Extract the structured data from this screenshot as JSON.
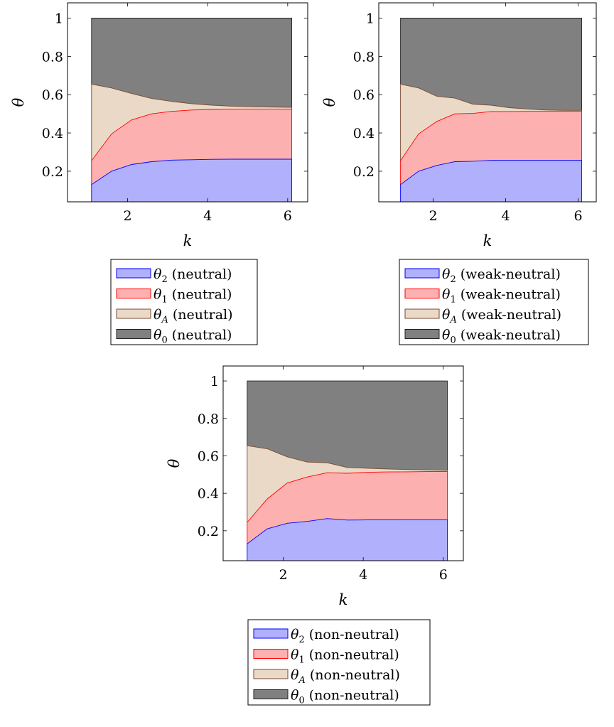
{
  "chart_data": [
    {
      "type": "area",
      "stacked": true,
      "variant": "neutral",
      "xlabel": "k",
      "ylabel": "θ",
      "xlim": [
        0.5,
        6.5
      ],
      "ylim": [
        0.04,
        1.08
      ],
      "xticks": [
        2,
        4,
        6
      ],
      "yticks": [
        0.2,
        0.4,
        0.6,
        0.8,
        1
      ],
      "x": [
        1.1,
        1.6,
        2.1,
        2.6,
        3.1,
        3.6,
        4.1,
        4.6,
        5.1,
        5.6,
        6.1
      ],
      "series": [
        {
          "key": "theta2",
          "name": "θ2 (neutral)",
          "sym": "θ",
          "sub": "2",
          "suffix": " (neutral)",
          "fill": "#b0b0fd",
          "stroke": "#0000ff",
          "values": [
            0.13,
            0.2,
            0.235,
            0.25,
            0.258,
            0.26,
            0.262,
            0.263,
            0.263,
            0.263,
            0.263
          ]
        },
        {
          "key": "theta1",
          "name": "θ1 (neutral)",
          "sym": "θ",
          "sub": "1",
          "suffix": " (neutral)",
          "fill": "#fdb0b0",
          "stroke": "#ff0000",
          "values": [
            0.255,
            0.395,
            0.468,
            0.5,
            0.513,
            0.52,
            0.523,
            0.524,
            0.525,
            0.525,
            0.525
          ]
        },
        {
          "key": "thetaA",
          "name": "θA (neutral)",
          "sym": "θ",
          "sub": "A",
          "suffix": " (neutral)",
          "fill": "#ead9c6",
          "stroke": "#7a4a33",
          "values": [
            0.655,
            0.635,
            0.606,
            0.58,
            0.565,
            0.553,
            0.545,
            0.54,
            0.537,
            0.535,
            0.534
          ]
        },
        {
          "key": "theta0",
          "name": "θ0 (neutral)",
          "sym": "θ",
          "sub": "0",
          "suffix": " (neutral)",
          "fill": "#808080",
          "stroke": "#222222",
          "values": [
            1,
            1,
            1,
            1,
            1,
            1,
            1,
            1,
            1,
            1,
            1
          ]
        }
      ]
    },
    {
      "type": "area",
      "stacked": true,
      "variant": "weak-neutral",
      "xlabel": "k",
      "ylabel": "θ",
      "xlim": [
        0.5,
        6.5
      ],
      "ylim": [
        0.04,
        1.08
      ],
      "xticks": [
        2,
        4,
        6
      ],
      "yticks": [
        0.2,
        0.4,
        0.6,
        0.8,
        1
      ],
      "x": [
        1.1,
        1.6,
        2.1,
        2.6,
        3.1,
        3.6,
        4.1,
        4.6,
        5.1,
        5.6,
        6.1
      ],
      "series": [
        {
          "key": "theta2",
          "name": "θ2 (weak-neutral)",
          "sym": "θ",
          "sub": "2",
          "suffix": " (weak-neutral)",
          "fill": "#b0b0fd",
          "stroke": "#0000ff",
          "values": [
            0.13,
            0.2,
            0.23,
            0.25,
            0.252,
            0.257,
            0.257,
            0.257,
            0.257,
            0.257,
            0.257
          ]
        },
        {
          "key": "theta1",
          "name": "θ1 (weak-neutral)",
          "sym": "θ",
          "sub": "1",
          "suffix": " (weak-neutral)",
          "fill": "#fdb0b0",
          "stroke": "#ff0000",
          "values": [
            0.255,
            0.395,
            0.46,
            0.5,
            0.502,
            0.512,
            0.512,
            0.513,
            0.513,
            0.513,
            0.513
          ]
        },
        {
          "key": "thetaA",
          "name": "θA (weak-neutral)",
          "sym": "θ",
          "sub": "A",
          "suffix": " (weak-neutral)",
          "fill": "#ead9c6",
          "stroke": "#7a4a33",
          "values": [
            0.655,
            0.635,
            0.592,
            0.582,
            0.55,
            0.545,
            0.532,
            0.525,
            0.52,
            0.518,
            0.518
          ]
        },
        {
          "key": "theta0",
          "name": "θ0 (weak-neutral)",
          "sym": "θ",
          "sub": "0",
          "suffix": " (weak-neutral)",
          "fill": "#808080",
          "stroke": "#222222",
          "values": [
            1,
            1,
            1,
            1,
            1,
            1,
            1,
            1,
            1,
            1,
            1
          ]
        }
      ]
    },
    {
      "type": "area",
      "stacked": true,
      "variant": "non-neutral",
      "xlabel": "k",
      "ylabel": "θ",
      "xlim": [
        0.5,
        6.5
      ],
      "ylim": [
        0.04,
        1.08
      ],
      "xticks": [
        2,
        4,
        6
      ],
      "yticks": [
        0.2,
        0.4,
        0.6,
        0.8,
        1
      ],
      "x": [
        1.1,
        1.6,
        2.1,
        2.6,
        3.1,
        3.6,
        4.1,
        4.6,
        5.1,
        5.6,
        6.1
      ],
      "series": [
        {
          "key": "theta2",
          "name": "θ2 (non-neutral)",
          "sym": "θ",
          "sub": "2",
          "suffix": " (non-neutral)",
          "fill": "#b0b0fd",
          "stroke": "#0000ff",
          "values": [
            0.13,
            0.21,
            0.24,
            0.25,
            0.265,
            0.257,
            0.258,
            0.258,
            0.259,
            0.259,
            0.259
          ]
        },
        {
          "key": "theta1",
          "name": "θ1 (non-neutral)",
          "sym": "θ",
          "sub": "1",
          "suffix": " (non-neutral)",
          "fill": "#fdb0b0",
          "stroke": "#ff0000",
          "values": [
            0.245,
            0.37,
            0.455,
            0.487,
            0.51,
            0.507,
            0.512,
            0.514,
            0.515,
            0.516,
            0.517
          ]
        },
        {
          "key": "thetaA",
          "name": "θA (non-neutral)",
          "sym": "θ",
          "sub": "A",
          "suffix": " (non-neutral)",
          "fill": "#ead9c6",
          "stroke": "#7a4a33",
          "values": [
            0.655,
            0.638,
            0.595,
            0.567,
            0.563,
            0.538,
            0.534,
            0.53,
            0.527,
            0.525,
            0.523
          ]
        },
        {
          "key": "theta0",
          "name": "θ0 (non-neutral)",
          "sym": "θ",
          "sub": "0",
          "suffix": " (non-neutral)",
          "fill": "#808080",
          "stroke": "#222222",
          "values": [
            1,
            1,
            1,
            1,
            1,
            1,
            1,
            1,
            1,
            1,
            1
          ]
        }
      ]
    }
  ]
}
